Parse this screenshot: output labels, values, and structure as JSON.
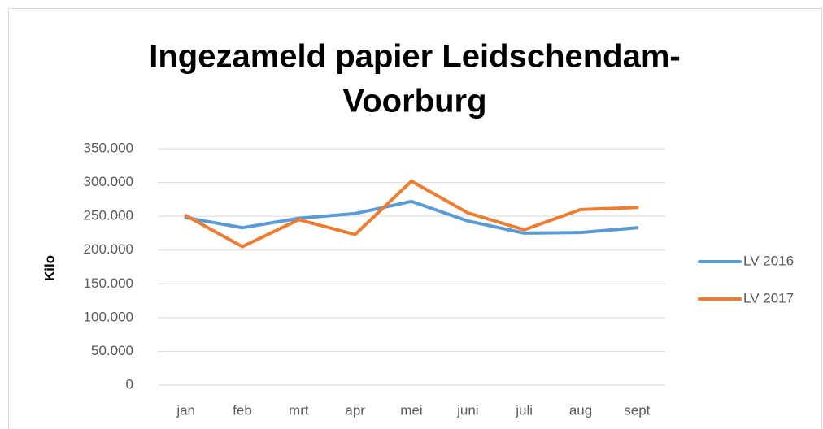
{
  "chart_data": {
    "type": "line",
    "title": [
      "Ingezameld papier Leidschendam-",
      "Voorburg"
    ],
    "ylabel": "Kilo",
    "categories": [
      "jan",
      "feb",
      "mrt",
      "apr",
      "mei",
      "juni",
      "juli",
      "aug",
      "sept"
    ],
    "series": [
      {
        "name": "LV 2016",
        "color": "#5b9bd5",
        "values": [
          248000,
          233000,
          247000,
          254000,
          272000,
          243000,
          225000,
          226000,
          233000
        ]
      },
      {
        "name": "LV 2017",
        "color": "#ed7d31",
        "values": [
          251000,
          205000,
          245000,
          223000,
          302000,
          255000,
          230000,
          260000,
          263000
        ]
      }
    ],
    "ylim": [
      0,
      350000
    ],
    "yticks": [
      0,
      {
        "value": 50000,
        "label": "50.000"
      },
      {
        "value": 100000,
        "label": "100.000"
      },
      {
        "value": 150000,
        "label": "150.000"
      },
      {
        "value": 200000,
        "label": "200.000"
      },
      {
        "value": 250000,
        "label": "250.000"
      },
      {
        "value": 300000,
        "label": "300.000"
      },
      {
        "value": 350000,
        "label": "350.000"
      }
    ],
    "grid": true,
    "legend": "right"
  }
}
